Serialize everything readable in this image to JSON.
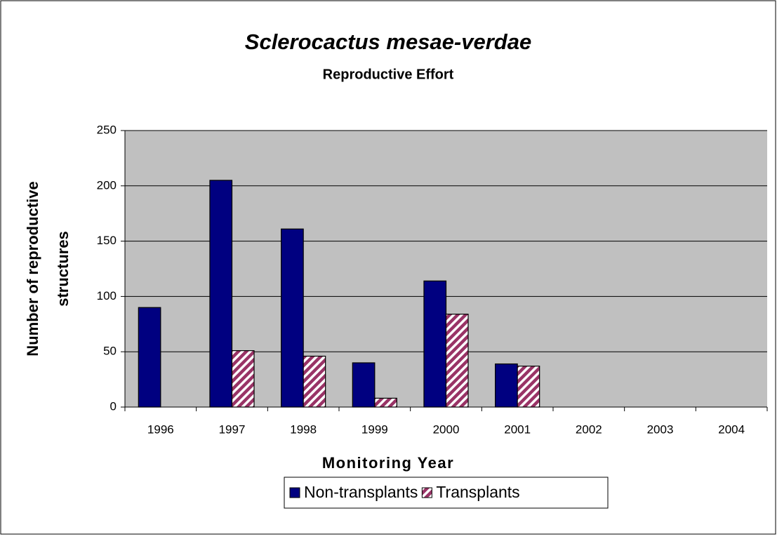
{
  "chart_data": {
    "type": "bar",
    "title": "Sclerocactus mesae-verdae",
    "subtitle": "Reproductive Effort",
    "x_label": "Monitoring Year",
    "y_label": [
      "Number of reproductive",
      "structures"
    ],
    "categories": [
      "1996",
      "1997",
      "1998",
      "1999",
      "2000",
      "2001",
      "2002",
      "2003",
      "2004"
    ],
    "series": [
      {
        "name": "Non-transplants",
        "color": "#000080",
        "pattern": "solid",
        "values": [
          90,
          205,
          161,
          40,
          114,
          39,
          null,
          null,
          null
        ]
      },
      {
        "name": "Transplants",
        "color": "#993366",
        "pattern": "diagonal-stripes",
        "values": [
          null,
          51,
          46,
          8,
          84,
          37,
          null,
          null,
          null
        ]
      }
    ],
    "ylim": [
      0,
      250
    ],
    "yticks": [
      0,
      50,
      100,
      150,
      200,
      250
    ],
    "grid": true,
    "legend": "bottom"
  }
}
